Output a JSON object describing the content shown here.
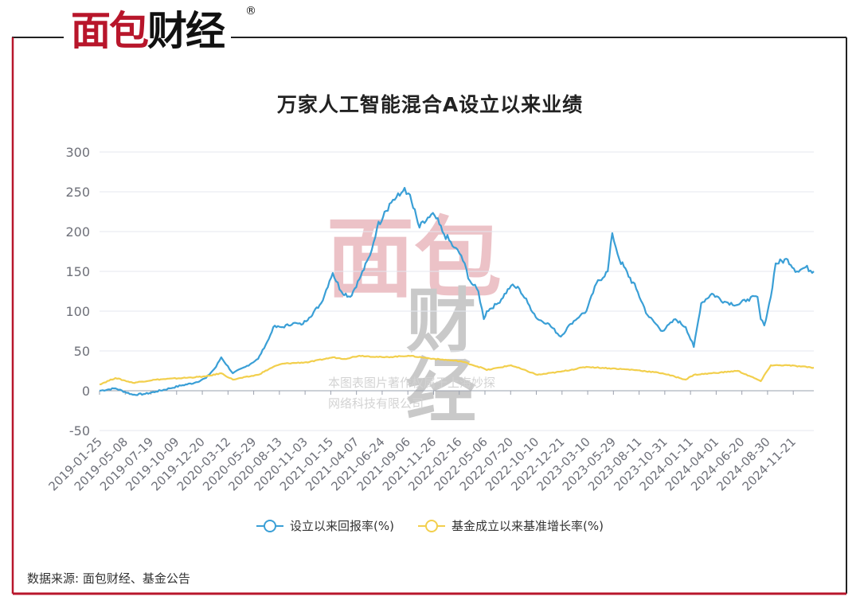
{
  "brand": {
    "logo_text_red": "面包",
    "logo_text_black": "财经",
    "registered_mark": "®"
  },
  "watermark": {
    "mark_red": "面包",
    "mark_gray": "财经",
    "line1": "本图表图片著作权属于上海妙探",
    "line2": "网络科技有限公司"
  },
  "source_note": "数据来源: 面包财经、基金公告",
  "chart_data": {
    "type": "line",
    "title": "万家人工智能混合A设立以来业绩",
    "xlabel": "",
    "ylabel": "",
    "ylim": [
      -50,
      300
    ],
    "yticks": [
      -50,
      0,
      50,
      100,
      150,
      200,
      250,
      300
    ],
    "grid": true,
    "legend_position": "bottom",
    "x_tick_labels": [
      "2019-01-25",
      "2019-05-08",
      "2019-07-19",
      "2019-10-09",
      "2019-12-20",
      "2020-03-12",
      "2020-05-29",
      "2020-08-13",
      "2020-11-03",
      "2021-01-15",
      "2021-04-07",
      "2021-06-24",
      "2021-09-06",
      "2021-11-26",
      "2022-02-16",
      "2022-05-06",
      "2022-07-20",
      "2022-10-10",
      "2022-12-21",
      "2023-03-10",
      "2023-05-29",
      "2023-08-11",
      "2023-10-31",
      "2024-01-11",
      "2024-04-01",
      "2024-06-20",
      "2024-08-30",
      "2024-11-21"
    ],
    "series": [
      {
        "name": "设立以来回报率(%)",
        "color": "#3a9fd6",
        "x": [
          "2019-01-25",
          "2019-03-15",
          "2019-05-08",
          "2019-06-15",
          "2019-07-19",
          "2019-08-30",
          "2019-10-09",
          "2019-11-15",
          "2019-12-20",
          "2020-01-20",
          "2020-02-05",
          "2020-03-12",
          "2020-04-20",
          "2020-05-29",
          "2020-07-01",
          "2020-07-15",
          "2020-08-13",
          "2020-09-15",
          "2020-10-10",
          "2020-11-03",
          "2020-12-10",
          "2021-01-05",
          "2021-01-15",
          "2021-02-10",
          "2021-03-10",
          "2021-04-07",
          "2021-05-10",
          "2021-06-01",
          "2021-06-24",
          "2021-07-20",
          "2021-08-10",
          "2021-08-25",
          "2021-09-06",
          "2021-10-10",
          "2021-11-10",
          "2021-11-26",
          "2021-12-20",
          "2022-01-25",
          "2022-02-16",
          "2022-03-15",
          "2022-04-10",
          "2022-04-27",
          "2022-05-06",
          "2022-06-10",
          "2022-07-20",
          "2022-08-15",
          "2022-09-10",
          "2022-10-10",
          "2022-11-10",
          "2022-12-21",
          "2023-01-20",
          "2023-02-20",
          "2023-03-10",
          "2023-04-10",
          "2023-05-15",
          "2023-05-29",
          "2023-06-20",
          "2023-08-11",
          "2023-09-15",
          "2023-10-31",
          "2023-12-10",
          "2024-01-11",
          "2024-02-05",
          "2024-02-28",
          "2024-04-01",
          "2024-05-10",
          "2024-06-20",
          "2024-07-20",
          "2024-08-20",
          "2024-08-30",
          "2024-09-10",
          "2024-09-30",
          "2024-10-15",
          "2024-11-21",
          "2024-12-20",
          "2025-01-15",
          "2025-02-10"
        ],
        "y": [
          0,
          3,
          -5,
          -4,
          -1,
          3,
          7,
          10,
          16,
          30,
          42,
          22,
          30,
          40,
          65,
          80,
          80,
          85,
          83,
          92,
          110,
          138,
          148,
          125,
          118,
          140,
          170,
          205,
          225,
          240,
          245,
          255,
          248,
          205,
          218,
          220,
          200,
          180,
          170,
          138,
          125,
          90,
          100,
          110,
          132,
          128,
          110,
          90,
          85,
          68,
          84,
          95,
          100,
          135,
          150,
          198,
          165,
          128,
          95,
          75,
          90,
          80,
          55,
          110,
          122,
          112,
          108,
          115,
          118,
          90,
          82,
          118,
          160,
          165,
          150,
          155,
          150
        ]
      },
      {
        "name": "基金成立以来基准增长率(%)",
        "color": "#f2cf4d",
        "x": [
          "2019-01-25",
          "2019-03-15",
          "2019-05-08",
          "2019-07-19",
          "2019-10-09",
          "2019-12-20",
          "2020-02-05",
          "2020-03-12",
          "2020-05-29",
          "2020-07-15",
          "2020-08-13",
          "2020-11-03",
          "2021-01-15",
          "2021-02-20",
          "2021-04-07",
          "2021-06-24",
          "2021-09-06",
          "2021-11-26",
          "2022-02-16",
          "2022-04-27",
          "2022-05-06",
          "2022-07-20",
          "2022-10-10",
          "2022-12-21",
          "2023-03-10",
          "2023-05-29",
          "2023-08-11",
          "2023-10-31",
          "2024-01-11",
          "2024-02-05",
          "2024-04-01",
          "2024-06-20",
          "2024-08-20",
          "2024-08-30",
          "2024-09-30",
          "2024-11-21",
          "2025-02-10"
        ],
        "y": [
          8,
          16,
          10,
          14,
          16,
          18,
          22,
          14,
          20,
          30,
          34,
          36,
          42,
          40,
          44,
          42,
          44,
          40,
          37,
          28,
          26,
          32,
          20,
          24,
          30,
          28,
          26,
          22,
          14,
          20,
          22,
          25,
          14,
          12,
          32,
          32,
          29
        ]
      }
    ]
  }
}
